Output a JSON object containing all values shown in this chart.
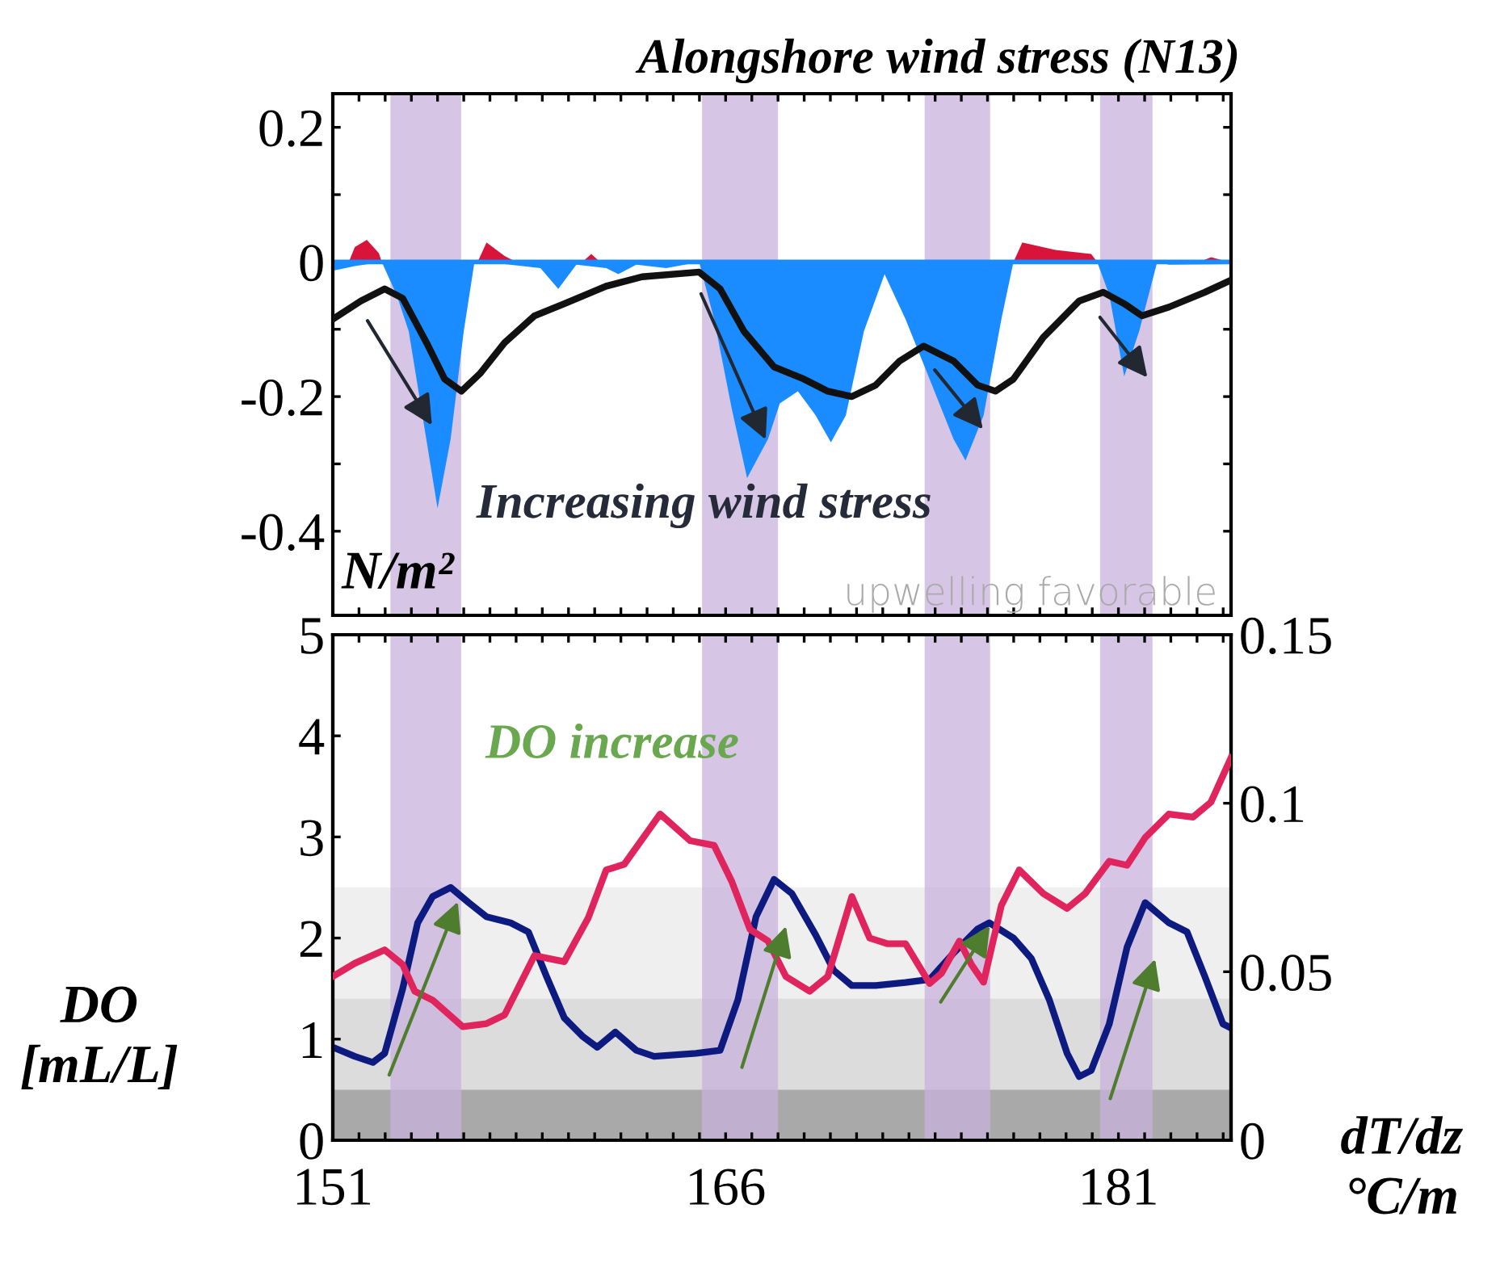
{
  "chart_data": [
    {
      "type": "area",
      "title": "Alongshore wind stress (N13)",
      "ylabel": "N/m²",
      "annotations": [
        {
          "text": "Increasing wind stress",
          "x": 167.6,
          "y": -0.27
        },
        "upwelling favorable"
      ],
      "series": [
        {
          "color": "#1a8cff",
          "x": [
            151.0,
            151.84,
            152.87,
            153.44,
            153.9,
            155.0,
            155.5,
            156.0,
            156.41,
            156.87,
            158.93,
            159.61,
            160.3,
            161.44,
            161.9,
            162.59,
            163.73,
            164.99,
            165.56,
            166.24,
            166.82,
            167.62,
            168.07,
            168.76,
            169.44,
            170.02,
            170.59,
            171.28,
            172.07,
            172.87,
            173.79,
            174.7,
            175.16,
            175.85,
            176.53,
            176.99,
            180.19,
            180.65,
            181.22,
            181.79,
            182.48,
            182.93,
            185.22
          ],
          "values": [
            -0.013,
            -0.006,
            0,
            -0.049,
            -0.103,
            -0.366,
            -0.263,
            -0.103,
            0,
            0,
            -0.009,
            -0.04,
            -0.004,
            -0.009,
            -0.018,
            -0.004,
            -0.009,
            0,
            -0.085,
            -0.219,
            -0.321,
            -0.263,
            -0.21,
            -0.192,
            -0.228,
            -0.268,
            -0.228,
            -0.103,
            -0.018,
            -0.085,
            -0.174,
            -0.263,
            -0.295,
            -0.228,
            -0.085,
            0,
            0,
            -0.049,
            -0.17,
            -0.103,
            0,
            -0.004,
            -0.003
          ]
        },
        {
          "color": "#d9143a",
          "x": [
            151.61,
            151.84,
            152.3,
            152.76,
            152.87,
            156.53,
            156.87,
            157.56,
            158.01,
            160.53,
            160.87,
            161.21,
            176.99,
            177.33,
            178.59,
            179.96,
            180.19,
            184.08,
            184.54,
            185.22
          ],
          "values": [
            0,
            0.022,
            0.033,
            0.013,
            0,
            0,
            0.029,
            0.009,
            0,
            0,
            0.012,
            0,
            0,
            0.029,
            0.018,
            0.012,
            0,
            0,
            0.007,
            0
          ]
        },
        {
          "type": "line",
          "color": "#111111",
          "x": [
            151.0,
            152.07,
            152.98,
            153.67,
            154.58,
            155.27,
            155.91,
            156.64,
            157.56,
            158.7,
            159.84,
            161.44,
            162.81,
            164.99,
            165.79,
            166.7,
            167.85,
            168.99,
            169.9,
            170.82,
            171.73,
            172.65,
            173.56,
            174.7,
            175.62,
            176.3,
            176.99,
            178.13,
            179.5,
            180.42,
            181.22,
            181.9,
            182.93,
            184.3,
            185.3
          ],
          "values": [
            -0.085,
            -0.058,
            -0.04,
            -0.054,
            -0.12,
            -0.174,
            -0.192,
            -0.165,
            -0.12,
            -0.08,
            -0.062,
            -0.036,
            -0.022,
            -0.015,
            -0.04,
            -0.103,
            -0.156,
            -0.174,
            -0.192,
            -0.2,
            -0.183,
            -0.147,
            -0.125,
            -0.147,
            -0.183,
            -0.192,
            -0.174,
            -0.112,
            -0.058,
            -0.045,
            -0.062,
            -0.08,
            -0.067,
            -0.045,
            -0.027
          ]
        }
      ],
      "xlim": [
        151,
        185.3
      ],
      "ylim": [
        -0.525,
        0.25
      ],
      "xticks": [
        {
          "value": 151,
          "label": null
        },
        {
          "value": 152,
          "label": null
        },
        {
          "value": 153,
          "label": null
        },
        {
          "value": 154,
          "label": null
        },
        {
          "value": 155,
          "label": null
        },
        {
          "value": 156,
          "label": null
        },
        {
          "value": 157,
          "label": null
        },
        {
          "value": 158,
          "label": null
        },
        {
          "value": 159,
          "label": null
        },
        {
          "value": 160,
          "label": null
        },
        {
          "value": 161,
          "label": null
        },
        {
          "value": 162,
          "label": null
        },
        {
          "value": 163,
          "label": null
        },
        {
          "value": 164,
          "label": null
        },
        {
          "value": 165,
          "label": null
        },
        {
          "value": 166,
          "label": null
        },
        {
          "value": 167,
          "label": null
        },
        {
          "value": 168,
          "label": null
        },
        {
          "value": 169,
          "label": null
        },
        {
          "value": 170,
          "label": null
        },
        {
          "value": 171,
          "label": null
        },
        {
          "value": 172,
          "label": null
        },
        {
          "value": 173,
          "label": null
        },
        {
          "value": 174,
          "label": null
        },
        {
          "value": 175,
          "label": null
        },
        {
          "value": 176,
          "label": null
        },
        {
          "value": 177,
          "label": null
        },
        {
          "value": 178,
          "label": null
        },
        {
          "value": 179,
          "label": null
        },
        {
          "value": 180,
          "label": null
        },
        {
          "value": 181,
          "label": null
        },
        {
          "value": 182,
          "label": null
        },
        {
          "value": 183,
          "label": null
        },
        {
          "value": 184,
          "label": null
        },
        {
          "value": 185,
          "label": null
        }
      ],
      "yticks": [
        0.2,
        {
          "value": 0.1,
          "label": null
        },
        0,
        {
          "value": -0.1,
          "label": null
        },
        -0.2,
        {
          "value": -0.3,
          "label": null
        },
        -0.4
      ],
      "tick_labels": "y",
      "ref_lines": [
        {
          "axis": "y",
          "value": 0,
          "color": "#1a8cff"
        }
      ],
      "bands": [
        {
          "axis": "x",
          "from": 153.2,
          "to": 155.9,
          "color": "#c9b1dc"
        },
        {
          "axis": "x",
          "from": 165.1,
          "to": 168.0,
          "color": "#c9b1dc"
        },
        {
          "axis": "x",
          "from": 173.6,
          "to": 176.1,
          "color": "#c9b1dc"
        },
        {
          "axis": "x",
          "from": 180.3,
          "to": 182.3,
          "color": "#c9b1dc"
        }
      ]
    },
    {
      "type": "line",
      "ylabel": "DO\n[mL/L]",
      "y2label": "dT/dz\n°C/m",
      "annotations": [
        "DO increase"
      ],
      "series": [
        {
          "color": "#0d1a80",
          "x": [
            151.0,
            151.84,
            152.53,
            152.98,
            153.67,
            154.24,
            154.81,
            155.5,
            156.19,
            156.87,
            157.79,
            158.47,
            159.16,
            159.84,
            160.53,
            161.1,
            161.79,
            162.59,
            163.27,
            164.87,
            165.79,
            166.47,
            167.16,
            167.85,
            168.53,
            169.44,
            170.13,
            170.82,
            171.73,
            172.87,
            173.79,
            174.7,
            175.62,
            176.07,
            176.99,
            177.67,
            178.36,
            179.04,
            179.5,
            179.96,
            180.65,
            181.33,
            182.02,
            182.93,
            183.62,
            184.3,
            184.99,
            185.3
          ],
          "values": [
            0.92,
            0.83,
            0.77,
            0.86,
            1.5,
            2.15,
            2.41,
            2.5,
            2.35,
            2.21,
            2.15,
            2.06,
            1.62,
            1.21,
            1.03,
            0.92,
            1.07,
            0.89,
            0.83,
            0.86,
            0.89,
            1.39,
            2.21,
            2.58,
            2.44,
            2.03,
            1.68,
            1.53,
            1.53,
            1.56,
            1.59,
            1.85,
            2.09,
            2.15,
            2.0,
            1.8,
            1.39,
            0.86,
            0.63,
            0.69,
            1.15,
            1.91,
            2.35,
            2.15,
            2.06,
            1.62,
            1.15,
            1.11
          ]
        },
        {
          "axis": "y2",
          "color": "#e0245e",
          "x": [
            151.0,
            151.84,
            152.98,
            153.67,
            154.13,
            154.81,
            155.96,
            156.87,
            157.56,
            158.7,
            159.84,
            160.76,
            161.44,
            162.13,
            163.5,
            164.64,
            165.56,
            166.24,
            166.93,
            167.62,
            168.3,
            169.21,
            169.9,
            170.82,
            171.5,
            172.19,
            172.87,
            173.79,
            174.24,
            174.93,
            175.39,
            175.85,
            176.53,
            177.21,
            178.13,
            179.04,
            179.73,
            180.65,
            181.33,
            182.02,
            182.93,
            183.85,
            184.53,
            185.3
          ],
          "values": [
            0.0486,
            0.0525,
            0.0565,
            0.0521,
            0.0442,
            0.0416,
            0.0337,
            0.0346,
            0.0372,
            0.0548,
            0.053,
            0.0661,
            0.0802,
            0.0819,
            0.0968,
            0.0889,
            0.0875,
            0.0767,
            0.0626,
            0.0591,
            0.0486,
            0.0442,
            0.0486,
            0.0723,
            0.06,
            0.0583,
            0.0583,
            0.0465,
            0.0495,
            0.0591,
            0.0521,
            0.0469,
            0.0697,
            0.0802,
            0.0732,
            0.0688,
            0.0732,
            0.0828,
            0.0816,
            0.0898,
            0.0968,
            0.0959,
            0.1003,
            0.1135
          ]
        }
      ],
      "xlim": [
        151,
        185.3
      ],
      "ylim": [
        0,
        5
      ],
      "y2lim": [
        0,
        0.15
      ],
      "xticks": [
        151,
        {
          "value": 152,
          "label": null
        },
        {
          "value": 153,
          "label": null
        },
        {
          "value": 154,
          "label": null
        },
        {
          "value": 155,
          "label": null
        },
        {
          "value": 156,
          "label": null
        },
        {
          "value": 157,
          "label": null
        },
        {
          "value": 158,
          "label": null
        },
        {
          "value": 159,
          "label": null
        },
        {
          "value": 160,
          "label": null
        },
        {
          "value": 161,
          "label": null
        },
        {
          "value": 162,
          "label": null
        },
        {
          "value": 163,
          "label": null
        },
        {
          "value": 164,
          "label": null
        },
        {
          "value": 165,
          "label": null
        },
        166,
        {
          "value": 167,
          "label": null
        },
        {
          "value": 168,
          "label": null
        },
        {
          "value": 169,
          "label": null
        },
        {
          "value": 170,
          "label": null
        },
        {
          "value": 171,
          "label": null
        },
        {
          "value": 172,
          "label": null
        },
        {
          "value": 173,
          "label": null
        },
        {
          "value": 174,
          "label": null
        },
        {
          "value": 175,
          "label": null
        },
        {
          "value": 176,
          "label": null
        },
        {
          "value": 177,
          "label": null
        },
        {
          "value": 178,
          "label": null
        },
        {
          "value": 179,
          "label": null
        },
        {
          "value": 180,
          "label": null
        },
        181,
        {
          "value": 182,
          "label": null
        },
        {
          "value": 183,
          "label": null
        },
        {
          "value": 184,
          "label": null
        },
        {
          "value": 185,
          "label": null
        }
      ],
      "yticks": [
        0,
        1,
        2,
        3,
        4,
        5
      ],
      "y2ticks": [
        0,
        0.05,
        0.1,
        0.15
      ],
      "bands": [
        {
          "axis": "y",
          "from": 0,
          "to": 2.5,
          "color": "#efefef"
        },
        {
          "axis": "y",
          "from": 0,
          "to": 1.4,
          "color": "#dcdcdc"
        },
        {
          "axis": "y",
          "from": 0,
          "to": 0.5,
          "color": "#a9a9a9"
        },
        {
          "axis": "x",
          "from": 153.2,
          "to": 155.9,
          "color": "#c9b1dc"
        },
        {
          "axis": "x",
          "from": 165.1,
          "to": 168.0,
          "color": "#c9b1dc"
        },
        {
          "axis": "x",
          "from": 173.6,
          "to": 176.1,
          "color": "#c9b1dc"
        },
        {
          "axis": "x",
          "from": 180.3,
          "to": 182.3,
          "color": "#c9b1dc"
        }
      ]
    }
  ]
}
